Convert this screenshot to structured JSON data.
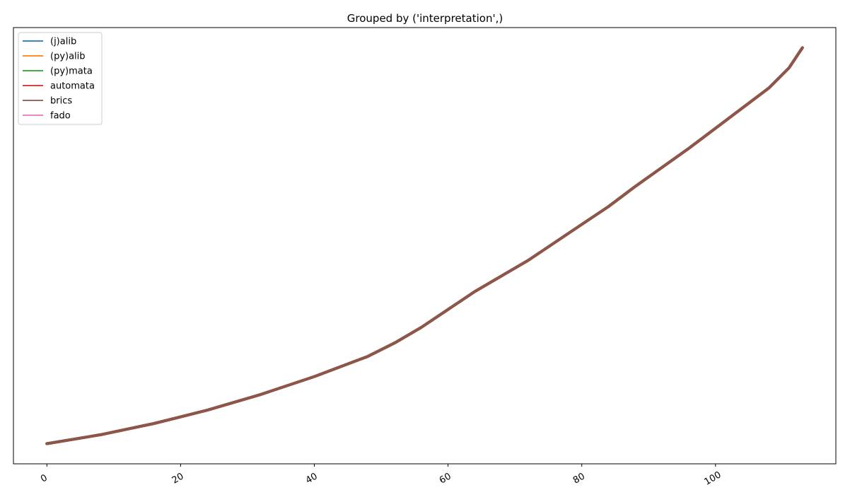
{
  "chart_data": {
    "type": "line",
    "title": "Grouped by ('interpretation',)",
    "xlabel": "",
    "ylabel": "",
    "xlim": [
      -5,
      118
    ],
    "ylim": [
      -2.5,
      95
    ],
    "xticks": [
      0,
      20,
      40,
      60,
      80,
      100
    ],
    "xtick_labels": [
      "0",
      "20",
      "40",
      "60",
      "80",
      "100"
    ],
    "yticks_visible": false,
    "grid": false,
    "legend_position": "top-left",
    "series": [
      {
        "name": "(j)alib",
        "color": "#1f77b4",
        "x": [
          0,
          8,
          16,
          24,
          32,
          40,
          48,
          52,
          56,
          60,
          64,
          72,
          80,
          84,
          88,
          96,
          104,
          108,
          111,
          113
        ],
        "y": [
          2,
          4,
          6.5,
          9.5,
          13,
          17,
          21.5,
          24.5,
          28,
          32,
          36,
          43,
          51,
          55,
          59.5,
          68,
          77,
          81.5,
          86,
          90.5
        ]
      },
      {
        "name": "(py)alib",
        "color": "#ff7f0e",
        "x": [
          0,
          8,
          16,
          24,
          32,
          40,
          48,
          52,
          56,
          60,
          64,
          72,
          80,
          84,
          88,
          96,
          104,
          108,
          111,
          113
        ],
        "y": [
          2,
          4,
          6.5,
          9.5,
          13,
          17,
          21.5,
          24.5,
          28,
          32,
          36,
          43,
          51,
          55,
          59.5,
          68,
          77,
          81.5,
          86,
          90.5
        ]
      },
      {
        "name": "(py)mata",
        "color": "#2ca02c",
        "x": [
          0,
          8,
          16,
          24,
          32,
          40,
          48,
          52,
          56,
          60,
          64,
          72,
          80,
          84,
          88,
          96,
          104,
          108,
          111,
          113
        ],
        "y": [
          2,
          4,
          6.5,
          9.5,
          13,
          17,
          21.5,
          24.5,
          28,
          32,
          36,
          43,
          51,
          55,
          59.5,
          68,
          77,
          81.5,
          86,
          90.5
        ]
      },
      {
        "name": "automata",
        "color": "#d62728",
        "x": [
          0,
          8,
          16,
          24,
          32,
          40,
          48,
          52,
          56,
          60,
          64,
          72,
          80,
          84,
          88,
          96,
          104,
          108,
          111,
          113
        ],
        "y": [
          2,
          4,
          6.5,
          9.5,
          13,
          17,
          21.5,
          24.5,
          28,
          32,
          36,
          43,
          51,
          55,
          59.5,
          68,
          77,
          81.5,
          86,
          90.5
        ]
      },
      {
        "name": "brics",
        "color": "#8c564b",
        "x": [
          0,
          8,
          16,
          24,
          32,
          40,
          48,
          52,
          56,
          60,
          64,
          72,
          80,
          84,
          88,
          96,
          104,
          108,
          111,
          113
        ],
        "y": [
          2,
          4,
          6.5,
          9.5,
          13,
          17,
          21.5,
          24.5,
          28,
          32,
          36,
          43,
          51,
          55,
          59.5,
          68,
          77,
          81.5,
          86,
          90.5
        ]
      },
      {
        "name": "fado",
        "color": "#e377c2",
        "x": [],
        "y": []
      }
    ]
  }
}
